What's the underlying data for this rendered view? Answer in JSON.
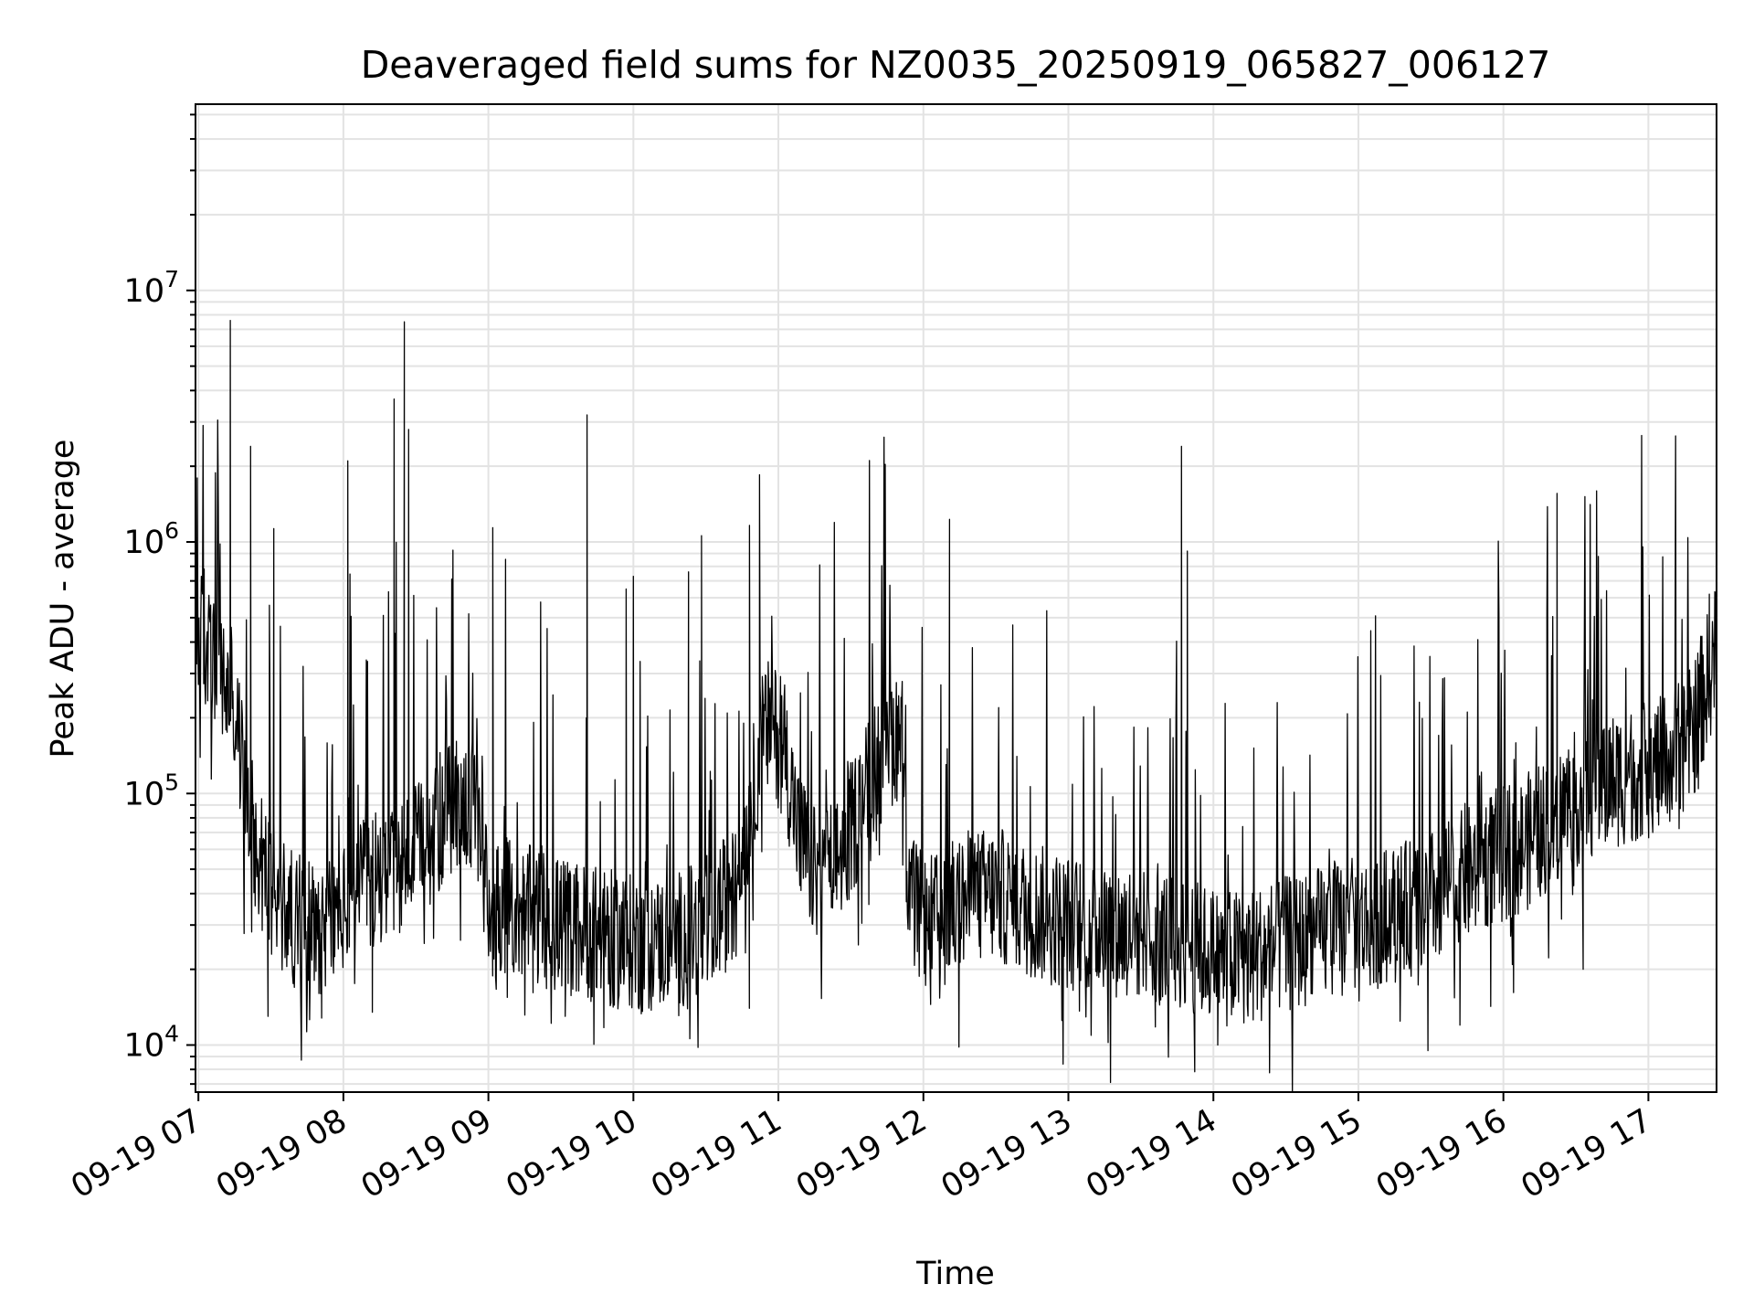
{
  "chart_data": {
    "type": "line",
    "title": "Deaveraged field sums for NZ0035_20250919_065827_006127",
    "xlabel": "Time",
    "ylabel": "Peak ADU - average",
    "yscale": "log",
    "ylim": [
      6500,
      55000000
    ],
    "xlim_hours": [
      6.98,
      17.47
    ],
    "grid": true,
    "line_color": "#000000",
    "grid_color": "#e3e3e3",
    "x_ticks": [
      {
        "label": "09-19 07",
        "hour": 7
      },
      {
        "label": "09-19 08",
        "hour": 8
      },
      {
        "label": "09-19 09",
        "hour": 9
      },
      {
        "label": "09-19 10",
        "hour": 10
      },
      {
        "label": "09-19 11",
        "hour": 11
      },
      {
        "label": "09-19 12",
        "hour": 12
      },
      {
        "label": "09-19 13",
        "hour": 13
      },
      {
        "label": "09-19 14",
        "hour": 14
      },
      {
        "label": "09-19 15",
        "hour": 15
      },
      {
        "label": "09-19 16",
        "hour": 16
      },
      {
        "label": "09-19 17",
        "hour": 17
      }
    ],
    "y_ticks": [
      {
        "base": "10",
        "exp": "4",
        "value": 10000
      },
      {
        "base": "10",
        "exp": "5",
        "value": 100000
      },
      {
        "base": "10",
        "exp": "6",
        "value": 1000000
      },
      {
        "base": "10",
        "exp": "7",
        "value": 10000000
      }
    ],
    "series": [
      {
        "name": "Peak ADU - average",
        "baseline": [
          [
            6.98,
            450000
          ],
          [
            7.05,
            380000
          ],
          [
            7.12,
            330000
          ],
          [
            7.2,
            250000
          ],
          [
            7.27,
            180000
          ],
          [
            7.32,
            110000
          ],
          [
            7.38,
            70000
          ],
          [
            7.45,
            50000
          ],
          [
            7.55,
            38000
          ],
          [
            7.65,
            32000
          ],
          [
            7.75,
            30000
          ],
          [
            7.85,
            30000
          ],
          [
            8.0,
            34000
          ],
          [
            8.1,
            40000
          ],
          [
            8.2,
            45000
          ],
          [
            8.3,
            50000
          ],
          [
            8.45,
            55000
          ],
          [
            8.55,
            60000
          ],
          [
            8.65,
            75000
          ],
          [
            8.78,
            95000
          ],
          [
            8.88,
            90000
          ],
          [
            8.95,
            60000
          ],
          [
            9.0,
            38000
          ],
          [
            9.15,
            35000
          ],
          [
            9.3,
            33000
          ],
          [
            9.5,
            30000
          ],
          [
            9.7,
            28000
          ],
          [
            9.9,
            26000
          ],
          [
            10.1,
            25000
          ],
          [
            10.3,
            26000
          ],
          [
            10.5,
            30000
          ],
          [
            10.7,
            40000
          ],
          [
            10.8,
            80000
          ],
          [
            10.88,
            160000
          ],
          [
            10.95,
            190000
          ],
          [
            11.05,
            140000
          ],
          [
            11.15,
            65000
          ],
          [
            11.25,
            48000
          ],
          [
            11.35,
            50000
          ],
          [
            11.45,
            60000
          ],
          [
            11.55,
            85000
          ],
          [
            11.65,
            120000
          ],
          [
            11.75,
            160000
          ],
          [
            11.85,
            180000
          ],
          [
            11.9,
            40000
          ],
          [
            12.0,
            30000
          ],
          [
            12.15,
            32000
          ],
          [
            12.3,
            38000
          ],
          [
            12.5,
            40000
          ],
          [
            12.7,
            35000
          ],
          [
            12.9,
            32000
          ],
          [
            13.1,
            30000
          ],
          [
            13.3,
            29000
          ],
          [
            13.5,
            28000
          ],
          [
            13.7,
            27000
          ],
          [
            13.9,
            24000
          ],
          [
            14.1,
            22000
          ],
          [
            14.3,
            23000
          ],
          [
            14.5,
            25000
          ],
          [
            14.7,
            27000
          ],
          [
            14.9,
            29000
          ],
          [
            15.1,
            31000
          ],
          [
            15.3,
            34000
          ],
          [
            15.5,
            38000
          ],
          [
            15.7,
            45000
          ],
          [
            15.9,
            55000
          ],
          [
            16.1,
            60000
          ],
          [
            16.3,
            75000
          ],
          [
            16.5,
            95000
          ],
          [
            16.7,
            110000
          ],
          [
            16.9,
            120000
          ],
          [
            17.1,
            130000
          ],
          [
            17.3,
            170000
          ],
          [
            17.47,
            380000
          ]
        ],
        "peaks": [
          [
            7.04,
            780000
          ],
          [
            7.22,
            7600000
          ],
          [
            7.36,
            2400000
          ],
          [
            7.49,
            560000
          ],
          [
            7.52,
            1130000
          ],
          [
            8.03,
            2100000
          ],
          [
            8.35,
            3700000
          ],
          [
            8.42,
            7500000
          ],
          [
            8.45,
            2800000
          ],
          [
            9.03,
            1140000
          ],
          [
            9.68,
            3200000
          ],
          [
            9.95,
            650000
          ],
          [
            10.0,
            730000
          ],
          [
            10.38,
            760000
          ],
          [
            10.47,
            1060000
          ],
          [
            10.87,
            1850000
          ],
          [
            12.18,
            1230000
          ],
          [
            13.78,
            2400000
          ],
          [
            13.82,
            920000
          ],
          [
            16.3,
            520000
          ],
          [
            16.37,
            1560000
          ],
          [
            17.42,
            620000
          ]
        ],
        "dips": [
          [
            7.48,
            13000
          ],
          [
            7.85,
            12800
          ],
          [
            8.2,
            13500
          ],
          [
            9.53,
            13000
          ],
          [
            10.8,
            14000
          ],
          [
            12.05,
            14500
          ],
          [
            13.6,
            11800
          ],
          [
            14.03,
            10000
          ],
          [
            15.48,
            9500
          ],
          [
            15.7,
            12000
          ],
          [
            16.55,
            20000
          ]
        ]
      }
    ]
  }
}
